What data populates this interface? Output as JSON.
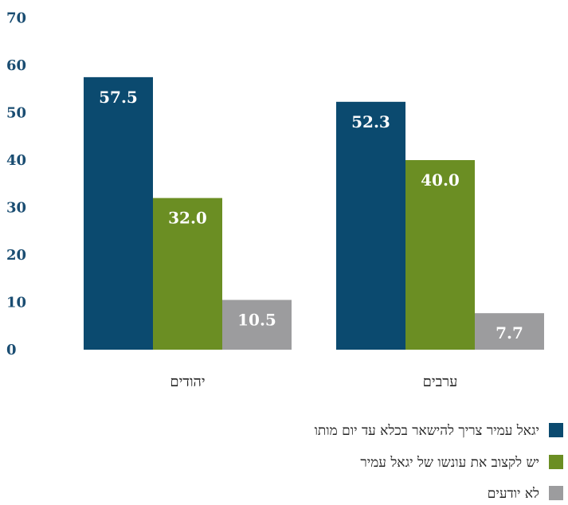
{
  "chart_data": {
    "type": "bar",
    "categories": [
      "יהודים",
      "ערבים"
    ],
    "series": [
      {
        "name": "יגאל עמיר צריך להישאר בכלא עד יום מותו",
        "values": [
          57.5,
          52.3
        ],
        "labels": [
          "57.5",
          "52.3"
        ],
        "color": "#0b4a6f"
      },
      {
        "name": "יש לקצוב את עונשו של יגאל עמיר",
        "values": [
          32.0,
          40.0
        ],
        "labels": [
          "32.0",
          "40.0"
        ],
        "color": "#6b8e23"
      },
      {
        "name": "לא יודעים",
        "values": [
          10.5,
          7.7
        ],
        "labels": [
          "10.5",
          "7.7"
        ],
        "color": "#9c9c9e"
      }
    ],
    "y_ticks": [
      "0",
      "10",
      "20",
      "30",
      "40",
      "50",
      "60",
      "70"
    ],
    "ylim": [
      0,
      70
    ],
    "grid": false,
    "legend_position": "bottom-right",
    "title": "",
    "xlabel": "",
    "ylabel": ""
  }
}
